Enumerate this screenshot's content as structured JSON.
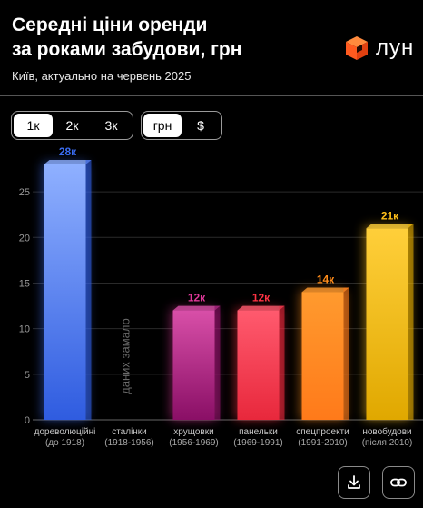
{
  "header": {
    "title_line1": "Середні ціни оренди",
    "title_line2": "за роками забудови, грн",
    "subtitle": "Київ, актуально на червень 2025",
    "brand_name": "лун",
    "brand_color": "#ff5a1f"
  },
  "controls": {
    "range_options": [
      "1к",
      "2к",
      "3к"
    ],
    "range_selected": "1к",
    "currency_options": [
      "грн",
      "$"
    ],
    "currency_selected": "грн"
  },
  "actions": {
    "download_icon": "download-icon",
    "link_icon": "link-icon"
  },
  "chart_data": {
    "type": "bar",
    "categories": [
      {
        "line1": "дореволюційні",
        "line2": "(до 1918)"
      },
      {
        "line1": "сталінки",
        "line2": "(1918-1956)"
      },
      {
        "line1": "хрущовки",
        "line2": "(1956-1969)"
      },
      {
        "line1": "панельки",
        "line2": "(1969-1991)"
      },
      {
        "line1": "спецпроекти",
        "line2": "(1991-2010)"
      },
      {
        "line1": "новобудови",
        "line2": "(після 2010)"
      }
    ],
    "values": [
      28,
      null,
      12,
      12,
      14,
      21
    ],
    "value_labels": [
      "28к",
      "",
      "12к",
      "12к",
      "14к",
      "21к"
    ],
    "no_data_label": "даних замало",
    "yticks": [
      0,
      5,
      10,
      15,
      20,
      25
    ],
    "ylim": [
      0,
      28
    ],
    "grid": true,
    "colors": [
      {
        "top": "#8fb0ff",
        "bottom": "#2f5ce0",
        "label": "#3a6cf0"
      },
      {
        "top": "#888888",
        "bottom": "#555555",
        "label": "#888888"
      },
      {
        "top": "#d84fa8",
        "bottom": "#8a0f66",
        "label": "#e0389a"
      },
      {
        "top": "#ff5a6e",
        "bottom": "#e8283c",
        "label": "#ff3344"
      },
      {
        "top": "#ff9a2e",
        "bottom": "#ff7a1a",
        "label": "#ff8c1a"
      },
      {
        "top": "#ffcf3a",
        "bottom": "#e0a800",
        "label": "#ffbf1a"
      }
    ]
  }
}
